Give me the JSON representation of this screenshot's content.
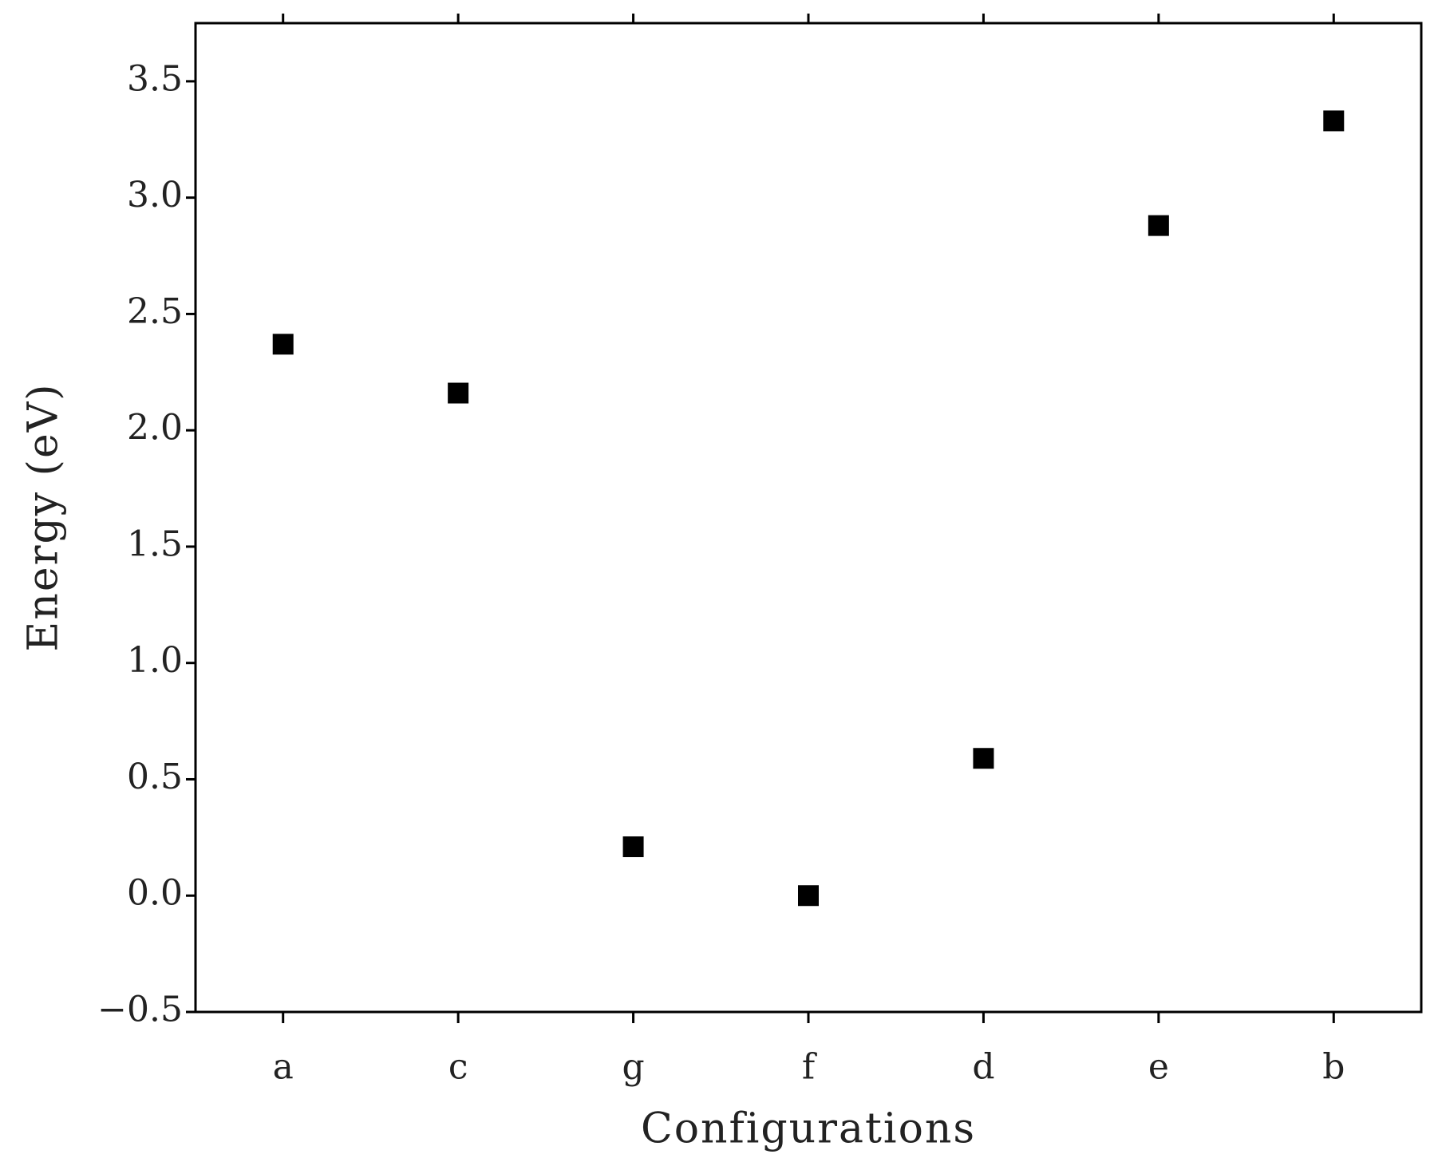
{
  "chart_data": {
    "type": "scatter",
    "x_label": "Configurations",
    "y_label": "Energy (eV)",
    "categories": [
      "a",
      "c",
      "g",
      "f",
      "d",
      "e",
      "b"
    ],
    "values": [
      2.37,
      2.16,
      0.21,
      0,
      0.59,
      2.88,
      3.33
    ],
    "color": "#000000",
    "ylim": [
      -0.5,
      3.75
    ],
    "yticks": [
      {
        "value": -0.5,
        "label": "−0.5"
      },
      {
        "value": 0,
        "label": "0.0"
      },
      0.5,
      {
        "value": 1,
        "label": "1.0"
      },
      1.5,
      {
        "value": 2,
        "label": "2.0"
      },
      2.5,
      {
        "value": 3,
        "label": "3.0"
      },
      3.5
    ],
    "grid": false
  }
}
